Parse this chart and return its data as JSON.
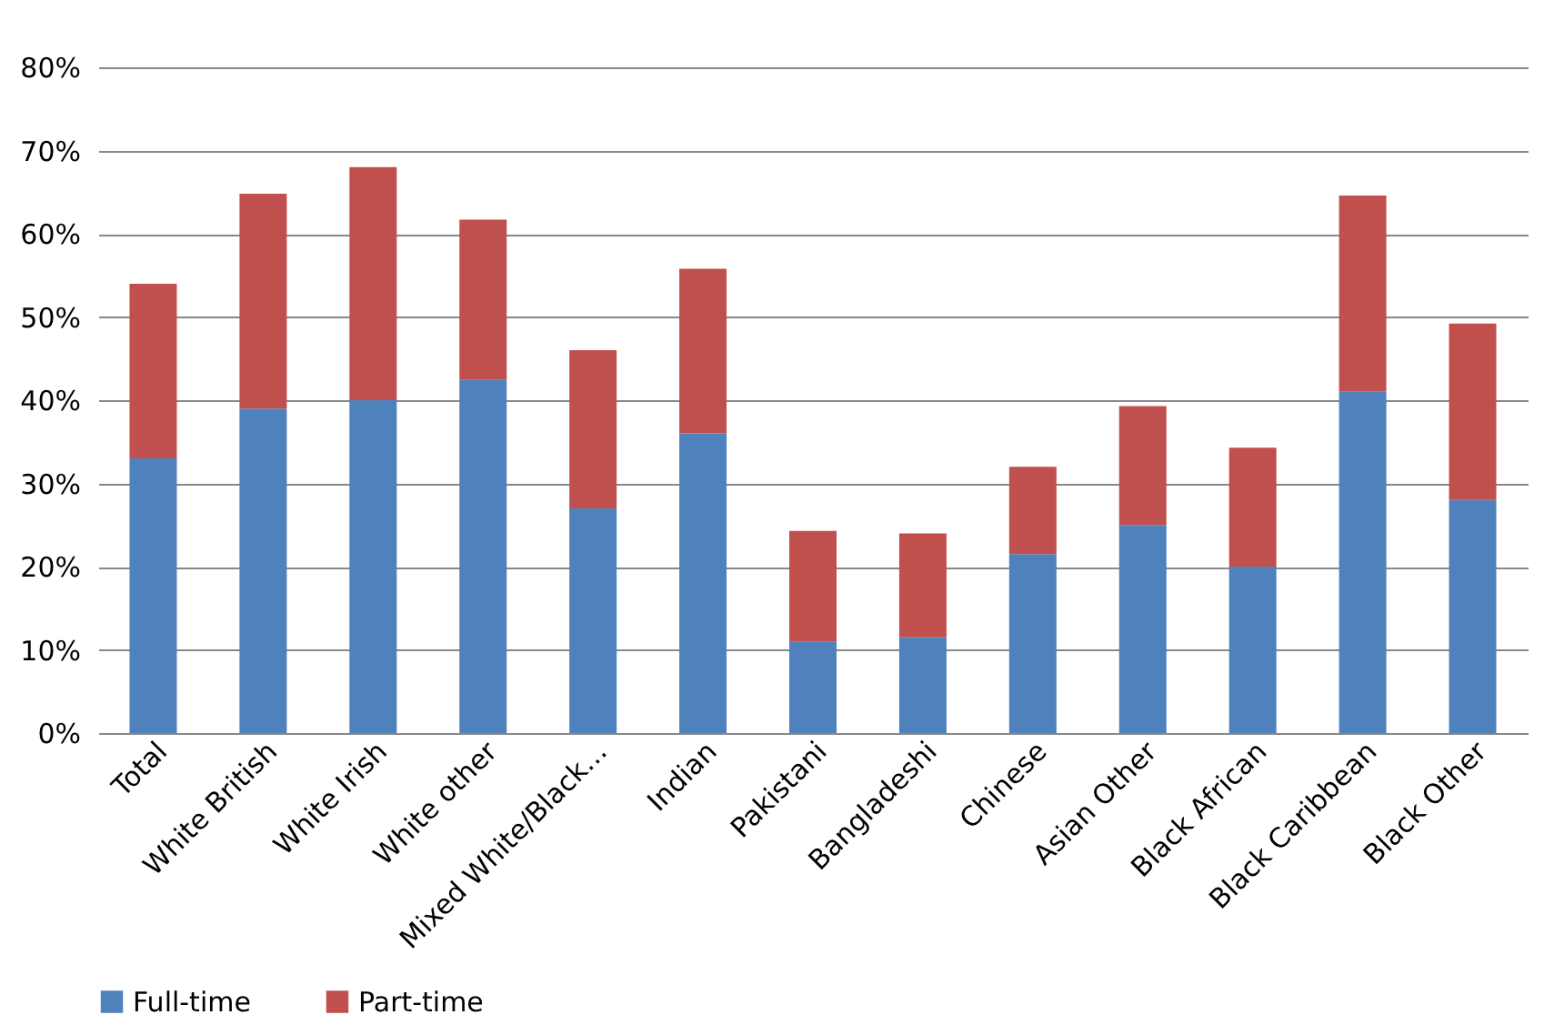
{
  "chart_data": {
    "type": "bar",
    "stacked": true,
    "categories": [
      "Total",
      "White British",
      "White Irish",
      "White other",
      "Mixed White/Black…",
      "Indian",
      "Pakistani",
      "Bangladeshi",
      "Chinese",
      "Asian Other",
      "Black African",
      "Black Caribbean",
      "Black Other"
    ],
    "series": [
      {
        "name": "Full-time",
        "color": "#4f81bd",
        "values": [
          33,
          39,
          40,
          42.5,
          27,
          36,
          11,
          11.5,
          21.5,
          25,
          20,
          41,
          28
        ]
      },
      {
        "name": "Part-time",
        "color": "#c0504d",
        "values": [
          21,
          25.8,
          28,
          19.2,
          19,
          19.8,
          13.3,
          12.5,
          10.5,
          14.3,
          14.3,
          23.6,
          21.2
        ]
      }
    ],
    "ylim": [
      0,
      80
    ],
    "yticks": [
      {
        "value": 0,
        "label": "0%"
      },
      {
        "value": 10,
        "label": "10%"
      },
      {
        "value": 20,
        "label": "20%"
      },
      {
        "value": 30,
        "label": "30%"
      },
      {
        "value": 40,
        "label": "40%"
      },
      {
        "value": 50,
        "label": "50%"
      },
      {
        "value": 60,
        "label": "60%"
      },
      {
        "value": 70,
        "label": "70%"
      },
      {
        "value": 80,
        "label": "80%"
      }
    ],
    "grid": "y",
    "legend": "bottom"
  }
}
